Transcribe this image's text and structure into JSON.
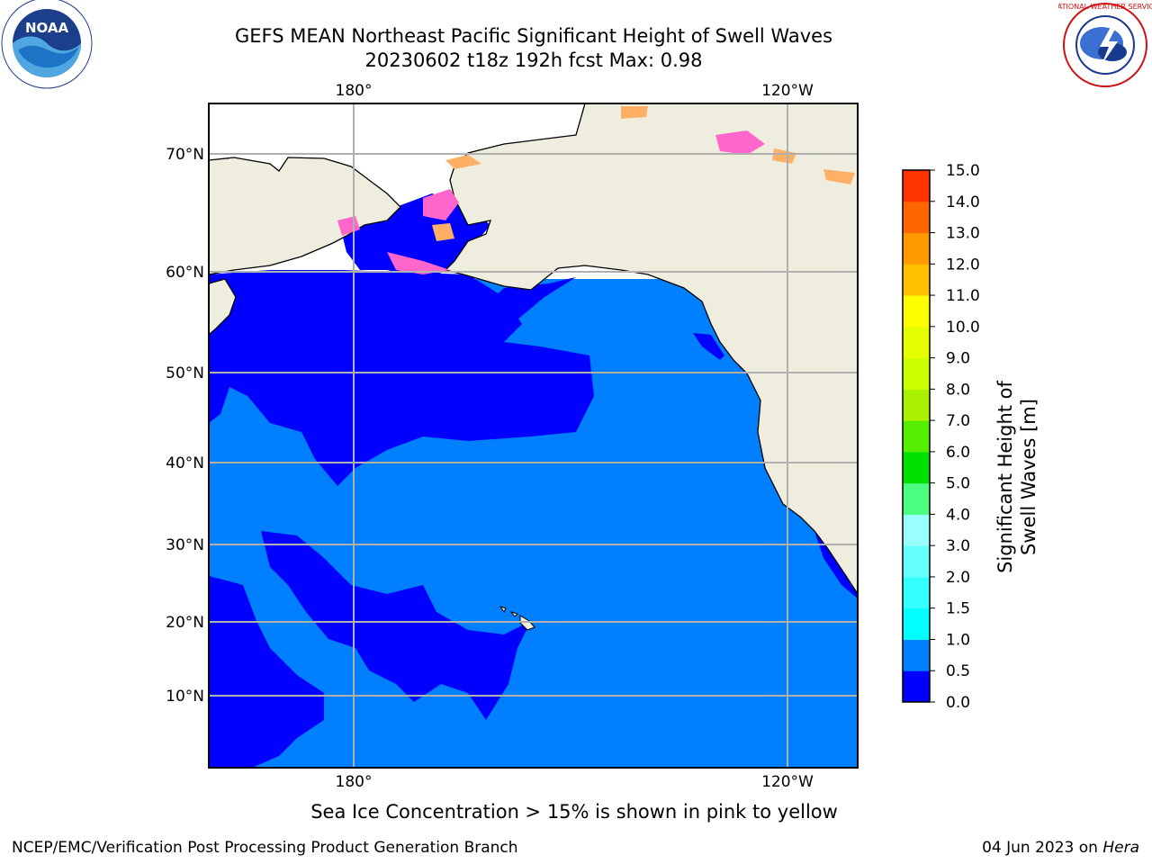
{
  "title": {
    "line1": "GEFS MEAN Northeast Pacific Significant Height of Swell Waves",
    "line2": "20230602 t18z 192h fcst   Max: 0.98"
  },
  "map": {
    "lon_labels_top": [
      "180°",
      "120°W"
    ],
    "lon_labels_bottom": [
      "180°",
      "120°W"
    ],
    "lat_labels": [
      "70°N",
      "60°N",
      "50°N",
      "40°N",
      "30°N",
      "20°N",
      "10°N"
    ]
  },
  "colorbar": {
    "label": "Significant Height of Swell Waves [m]",
    "ticks": [
      "0.0",
      "0.5",
      "1.0",
      "1.5",
      "2.0",
      "3.0",
      "4.0",
      "5.0",
      "6.0",
      "7.0",
      "8.0",
      "9.0",
      "10.0",
      "11.0",
      "12.0",
      "13.0",
      "14.0",
      "15.0"
    ],
    "colors": [
      "#0000ff",
      "#0080ff",
      "#00ffff",
      "#33ffff",
      "#66ffff",
      "#99ffff",
      "#4dff80",
      "#00e000",
      "#55ee00",
      "#aaf000",
      "#ccff00",
      "#e6ff00",
      "#ffff00",
      "#ffc000",
      "#ff9900",
      "#ff6600",
      "#ff3300",
      "#ff0000"
    ]
  },
  "colors": {
    "land": "#efeddd",
    "ocean_low": "#0000ff",
    "ocean_mid": "#0080ff",
    "ice_pink": "#ff66cc",
    "ice_orange": "#ffb066",
    "grid": "#b0b0b0"
  },
  "logos": {
    "noaa_text": "NOAA",
    "nws_text": "NATIONAL WEATHER SERVICE"
  },
  "note": "Sea Ice Concentration > 15% is shown in pink to yellow",
  "footer": {
    "left": "NCEP/EMC/Verification Post Processing Product Generation Branch",
    "date": "04 Jun 2023 on",
    "machine": "Hera"
  }
}
